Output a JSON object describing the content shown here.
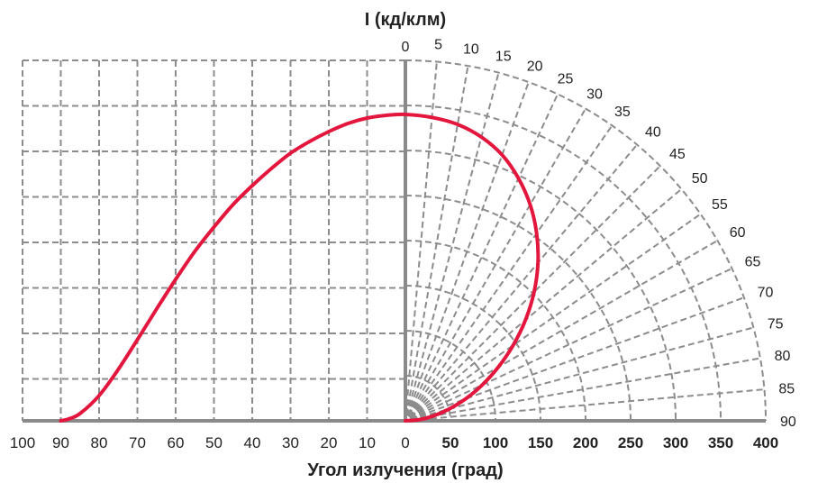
{
  "chart_data": {
    "type": "polar-line",
    "ylabel": "I (кд/клм)",
    "xlabel": "Угол излучения (град)",
    "left_axis_ticks": [
      "100",
      "90",
      "80",
      "70",
      "60",
      "50",
      "40",
      "30",
      "20",
      "10",
      "0"
    ],
    "right_axis_ticks": [
      "0",
      "50",
      "100",
      "150",
      "200",
      "250",
      "300",
      "350",
      "400"
    ],
    "angle_ticks": [
      "0",
      "5",
      "10",
      "15",
      "20",
      "25",
      "30",
      "35",
      "40",
      "45",
      "50",
      "55",
      "60",
      "65",
      "70",
      "75",
      "80",
      "85",
      "90"
    ],
    "intensity_range": [
      0,
      400
    ],
    "angle_range_deg": [
      0,
      90
    ],
    "grid": true,
    "series": [
      {
        "color": "#e3173e",
        "polar_points": [
          [
            0,
            340
          ],
          [
            5,
            338
          ],
          [
            10,
            334
          ],
          [
            15,
            326
          ],
          [
            20,
            314
          ],
          [
            25,
            297
          ],
          [
            30,
            277
          ],
          [
            35,
            254
          ],
          [
            40,
            229
          ],
          [
            45,
            202
          ],
          [
            50,
            174
          ],
          [
            55,
            146
          ],
          [
            60,
            119
          ],
          [
            65,
            94
          ],
          [
            70,
            71
          ],
          [
            75,
            50
          ],
          [
            80,
            32
          ],
          [
            85,
            16
          ],
          [
            90,
            0
          ]
        ],
        "cartesian_points": [
          [
            0,
            340
          ],
          [
            5,
            339
          ],
          [
            10,
            336
          ],
          [
            15,
            330
          ],
          [
            20,
            321
          ],
          [
            25,
            310
          ],
          [
            30,
            297
          ],
          [
            35,
            280
          ],
          [
            40,
            261
          ],
          [
            45,
            240
          ],
          [
            50,
            215
          ],
          [
            55,
            188
          ],
          [
            60,
            157
          ],
          [
            65,
            124
          ],
          [
            70,
            90
          ],
          [
            75,
            57
          ],
          [
            80,
            28
          ],
          [
            85,
            8
          ],
          [
            88,
            2
          ],
          [
            90,
            0
          ]
        ]
      }
    ]
  }
}
